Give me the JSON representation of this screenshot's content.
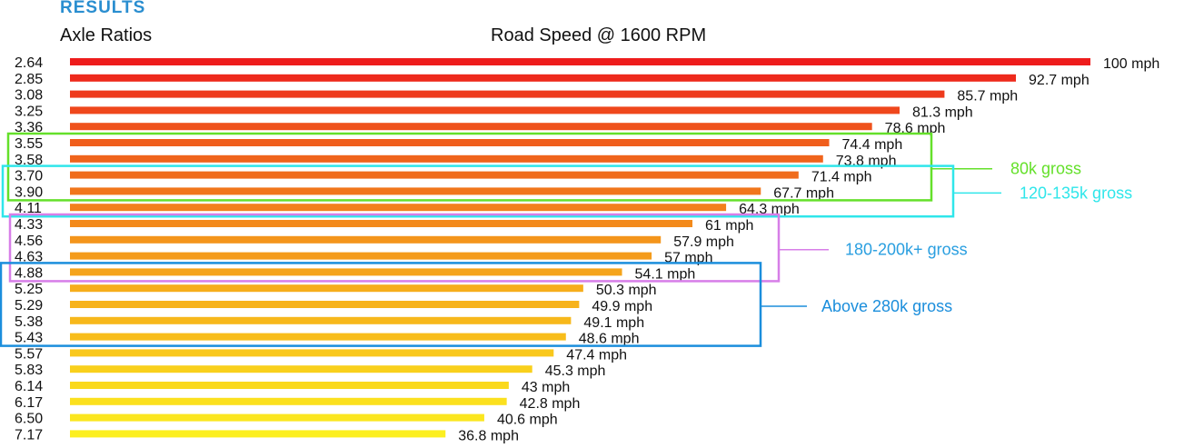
{
  "header": {
    "section_title": "RESULTS",
    "section_title_color": "#2a8ed0",
    "col_ratio_label": "Axle Ratios",
    "col_speed_label": "Road Speed @ 1600 RPM"
  },
  "chart_data": {
    "type": "bar",
    "orientation": "horizontal",
    "title": "Road Speed @ 1600 RPM",
    "categories": [
      "2.64",
      "2.85",
      "3.08",
      "3.25",
      "3.36",
      "3.55",
      "3.58",
      "3.70",
      "3.90",
      "4.11",
      "4.33",
      "4.56",
      "4.63",
      "4.88",
      "5.25",
      "5.29",
      "5.38",
      "5.43",
      "5.57",
      "5.83",
      "6.14",
      "6.17",
      "6.50",
      "7.17"
    ],
    "values": [
      100,
      92.7,
      85.7,
      81.3,
      78.6,
      74.4,
      73.8,
      71.4,
      67.7,
      64.3,
      61,
      57.9,
      57,
      54.1,
      50.3,
      49.9,
      49.1,
      48.6,
      47.4,
      45.3,
      43,
      42.8,
      40.6,
      36.8
    ],
    "value_labels": [
      "100 mph",
      "92.7 mph",
      "85.7 mph",
      "81.3 mph",
      "78.6 mph",
      "74.4 mph",
      "73.8 mph",
      "71.4 mph",
      "67.7 mph",
      "64.3 mph",
      "61 mph",
      "57.9 mph",
      "57 mph",
      "54.1 mph",
      "50.3 mph",
      "49.9 mph",
      "49.1 mph",
      "48.6 mph",
      "47.4 mph",
      "45.3 mph",
      "43 mph",
      "42.8 mph",
      "40.6 mph",
      "36.8 mph"
    ],
    "colors": [
      "#ee1c1c",
      "#ee2a1c",
      "#ee3a1c",
      "#ef471c",
      "#ef521c",
      "#f05e1c",
      "#f0641c",
      "#f06c1c",
      "#f1761b",
      "#f2801b",
      "#f38a1b",
      "#f4951b",
      "#f49b1b",
      "#f5a41b",
      "#f6ad1b",
      "#f7b31b",
      "#f7b81b",
      "#f8bd1b",
      "#f9c81c",
      "#f9d01c",
      "#fad91d",
      "#fbe01e",
      "#fbe61f",
      "#fcef20"
    ],
    "ylabel": "Axle Ratios",
    "xlim": [
      0,
      100
    ],
    "grid": false,
    "annotations": [
      {
        "label": "80k gross",
        "color": "#64e02a",
        "from_index": 5,
        "to_index": 8
      },
      {
        "label": "120-135k gross",
        "color": "#2fe6ea",
        "from_index": 7,
        "to_index": 9
      },
      {
        "label": "180-200k+ gross",
        "color": "#d77ee8",
        "label_color": "#2a9fe0",
        "from_index": 10,
        "to_index": 13
      },
      {
        "label": "Above 280k gross",
        "color": "#1b8edc",
        "label_color": "#1b8edc",
        "from_index": 13,
        "to_index": 17
      }
    ]
  }
}
